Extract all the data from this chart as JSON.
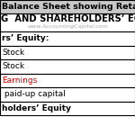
{
  "title": "Balance Sheet showing Retained",
  "section_header": "G  AND SHAREHOLDERS’ EQUITY",
  "watermark": "www.AccountingCapital.com",
  "rows": [
    {
      "text": "rs’ Equity:",
      "bold": true,
      "color": "#000000"
    },
    {
      "text": "Stock",
      "bold": false,
      "color": "#000000"
    },
    {
      "text": "Stock",
      "bold": false,
      "color": "#000000"
    },
    {
      "text": "Earnings",
      "bold": false,
      "color": "#cc0000"
    },
    {
      "text": " paid-up capital",
      "bold": false,
      "color": "#000000"
    },
    {
      "text": "holders’ Equity",
      "bold": true,
      "color": "#000000"
    }
  ],
  "bg_color": "#ffffff",
  "title_bg": "#c8c8c8",
  "border_color": "#000000",
  "title_font_size": 6.8,
  "header_font_size": 7.2,
  "watermark_font_size": 4.5,
  "row_font_size": 6.5
}
